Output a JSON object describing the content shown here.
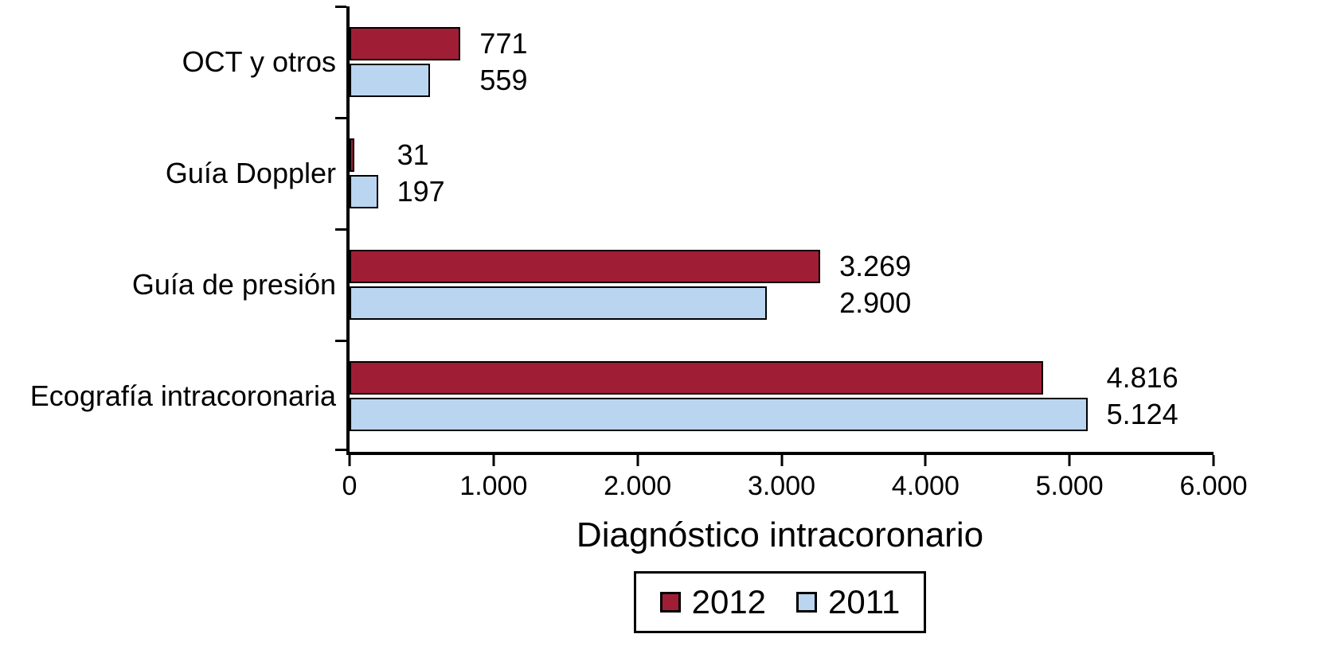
{
  "chart_data": {
    "type": "bar",
    "orientation": "horizontal",
    "title": "",
    "xlabel": "Diagnóstico intracoronario",
    "ylabel": "",
    "xlim": [
      0,
      6000
    ],
    "grid": false,
    "legend_position": "bottom",
    "x_ticks": [
      {
        "value": 0,
        "label": "0"
      },
      {
        "value": 1000,
        "label": "1.000"
      },
      {
        "value": 2000,
        "label": "2.000"
      },
      {
        "value": 3000,
        "label": "3.000"
      },
      {
        "value": 4000,
        "label": "4.000"
      },
      {
        "value": 5000,
        "label": "5.000"
      },
      {
        "value": 6000,
        "label": "6.000"
      }
    ],
    "categories": [
      "OCT y otros",
      "Guía Doppler",
      "Guía de presión",
      "Ecografía intracoronaria"
    ],
    "series": [
      {
        "name": "2012",
        "color": "#a01e35",
        "border": "#000000",
        "values": [
          771,
          31,
          3269,
          4816
        ],
        "labels": [
          "771",
          "31",
          "3.269",
          "4.816"
        ]
      },
      {
        "name": "2011",
        "color": "#b9d5f0",
        "border": "#000000",
        "values": [
          559,
          197,
          2900,
          5124
        ],
        "labels": [
          "559",
          "197",
          "2.900",
          "5.124"
        ]
      }
    ],
    "legend": {
      "entries": [
        {
          "label": "2012",
          "color": "#a01e35",
          "border": "#000000"
        },
        {
          "label": "2011",
          "color": "#b9d5f0",
          "border": "#000000"
        }
      ]
    }
  }
}
